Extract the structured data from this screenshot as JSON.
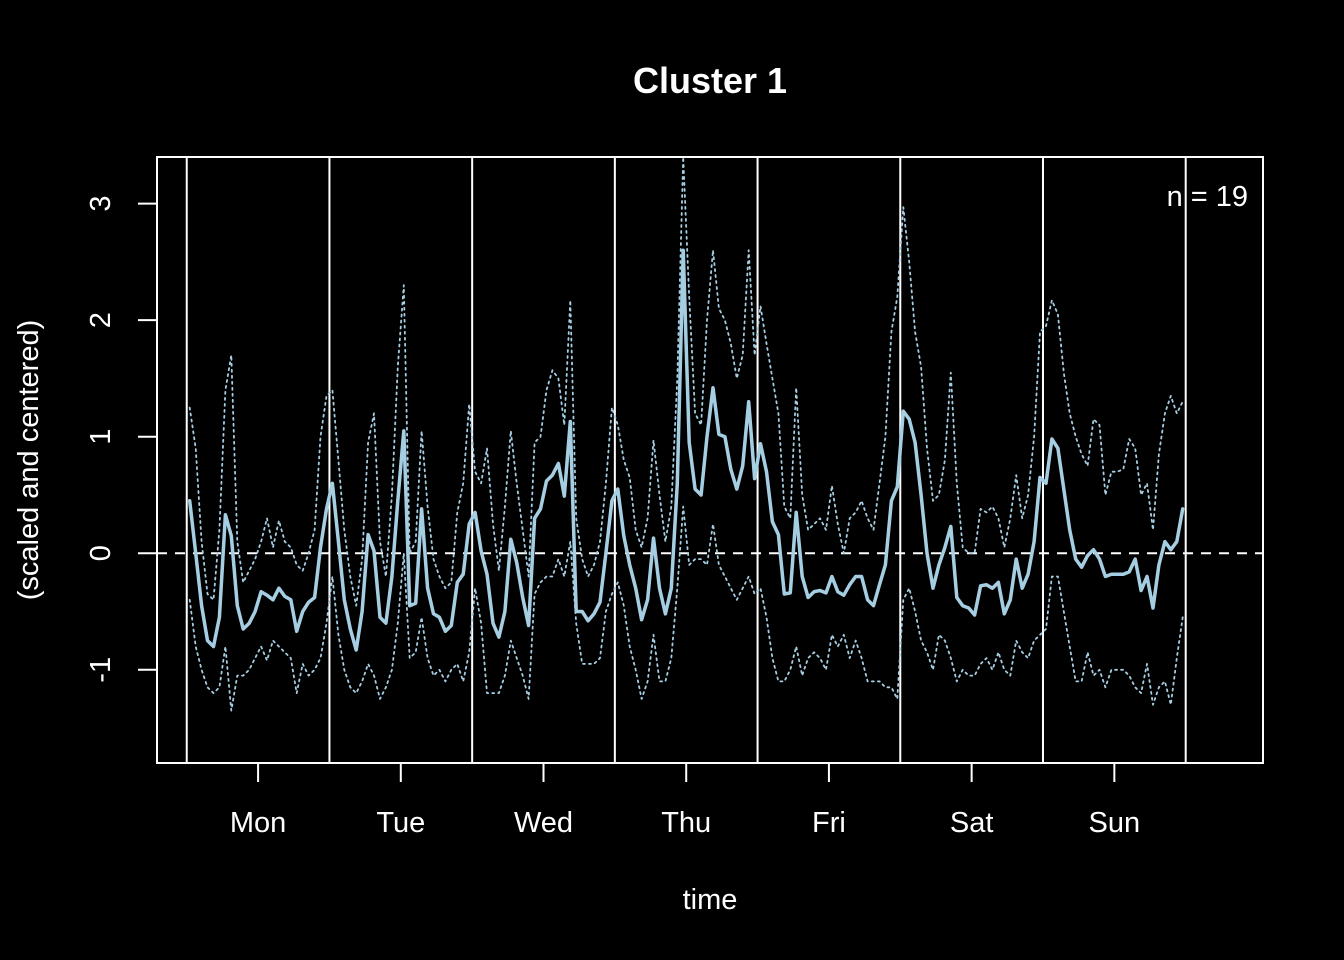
{
  "chart_data": {
    "type": "line",
    "title": "Cluster 1",
    "xlabel": "time",
    "ylabel": "(scaled and centered)",
    "annotation": "n = 19",
    "day_labels": [
      "Mon",
      "Tue",
      "Wed",
      "Thu",
      "Fri",
      "Sat",
      "Sun"
    ],
    "y_ticks": [
      -1,
      0,
      1,
      2,
      3
    ],
    "y_tick_labels": [
      "-1",
      "0",
      "1",
      "2",
      "3"
    ],
    "xlim": [
      -5.5,
      180.5
    ],
    "ylim": [
      -1.8,
      3.4
    ],
    "reference_line_y": 0,
    "grid": false,
    "colors": {
      "background": "#000000",
      "foreground": "#ffffff",
      "series": "#a6cee3"
    },
    "series": [
      {
        "name": "mean",
        "style": "solid",
        "values": [
          0.45,
          0.0,
          -0.45,
          -0.75,
          -0.8,
          -0.55,
          0.33,
          0.15,
          -0.45,
          -0.65,
          -0.6,
          -0.5,
          -0.33,
          -0.36,
          -0.4,
          -0.3,
          -0.37,
          -0.4,
          -0.67,
          -0.5,
          -0.42,
          -0.38,
          0.05,
          0.38,
          0.6,
          0.1,
          -0.4,
          -0.65,
          -0.83,
          -0.5,
          0.16,
          0.02,
          -0.55,
          -0.6,
          -0.2,
          0.45,
          1.05,
          -0.45,
          -0.43,
          0.38,
          -0.3,
          -0.52,
          -0.55,
          -0.67,
          -0.62,
          -0.25,
          -0.18,
          0.25,
          0.35,
          0.02,
          -0.18,
          -0.6,
          -0.72,
          -0.5,
          0.12,
          -0.08,
          -0.38,
          -0.62,
          0.3,
          0.38,
          0.62,
          0.67,
          0.77,
          0.49,
          1.13,
          -0.5,
          -0.5,
          -0.58,
          -0.52,
          -0.42,
          0.0,
          0.45,
          0.55,
          0.15,
          -0.1,
          -0.3,
          -0.57,
          -0.4,
          0.13,
          -0.3,
          -0.52,
          -0.3,
          0.6,
          2.6,
          0.95,
          0.55,
          0.5,
          1.0,
          1.42,
          1.02,
          1.0,
          0.72,
          0.55,
          0.75,
          1.3,
          0.64,
          0.94,
          0.7,
          0.27,
          0.16,
          -0.35,
          -0.34,
          0.35,
          -0.2,
          -0.38,
          -0.33,
          -0.32,
          -0.34,
          -0.2,
          -0.33,
          -0.36,
          -0.27,
          -0.2,
          -0.2,
          -0.4,
          -0.45,
          -0.27,
          -0.1,
          0.45,
          0.57,
          1.22,
          1.15,
          0.95,
          0.5,
          0.0,
          -0.3,
          -0.1,
          0.05,
          0.23,
          -0.38,
          -0.45,
          -0.47,
          -0.53,
          -0.28,
          -0.27,
          -0.3,
          -0.25,
          -0.52,
          -0.4,
          -0.05,
          -0.3,
          -0.18,
          0.1,
          0.65,
          0.6,
          0.98,
          0.9,
          0.55,
          0.2,
          -0.05,
          -0.12,
          -0.02,
          0.03,
          -0.05,
          -0.2,
          -0.18,
          -0.18,
          -0.18,
          -0.16,
          -0.05,
          -0.32,
          -0.2,
          -0.47,
          -0.1,
          0.1,
          0.03,
          0.1,
          0.38
        ]
      },
      {
        "name": "upper",
        "style": "dotted",
        "values": [
          1.25,
          0.9,
          0.1,
          -0.35,
          -0.4,
          0.2,
          1.4,
          1.7,
          0.1,
          -0.25,
          -0.15,
          -0.05,
          0.1,
          0.3,
          0.05,
          0.28,
          0.1,
          0.05,
          -0.1,
          -0.15,
          0.0,
          0.2,
          1.0,
          1.35,
          1.4,
          0.8,
          0.2,
          -0.2,
          -0.45,
          -0.05,
          0.95,
          1.2,
          0.1,
          -0.2,
          0.5,
          1.6,
          2.3,
          0.0,
          0.1,
          1.05,
          0.4,
          -0.05,
          -0.2,
          -0.3,
          -0.25,
          0.35,
          0.6,
          1.28,
          0.7,
          0.6,
          0.9,
          0.25,
          -0.15,
          0.4,
          1.05,
          0.6,
          0.2,
          -0.2,
          0.95,
          1.0,
          1.4,
          1.57,
          1.5,
          1.1,
          2.17,
          0.3,
          -0.05,
          -0.2,
          -0.1,
          0.1,
          0.6,
          1.25,
          1.1,
          0.8,
          0.65,
          0.2,
          0.05,
          0.3,
          0.97,
          0.5,
          0.1,
          0.4,
          1.5,
          3.4,
          2.2,
          1.2,
          1.1,
          2.0,
          2.6,
          2.1,
          2.0,
          1.8,
          1.5,
          1.7,
          2.6,
          1.7,
          2.12,
          1.8,
          1.5,
          1.2,
          0.4,
          0.3,
          1.42,
          0.5,
          0.2,
          0.25,
          0.3,
          0.2,
          0.58,
          0.25,
          0.0,
          0.3,
          0.35,
          0.45,
          0.3,
          0.2,
          0.6,
          1.0,
          1.9,
          2.2,
          2.97,
          2.5,
          1.9,
          1.6,
          0.9,
          0.45,
          0.5,
          0.8,
          1.55,
          0.6,
          0.05,
          0.0,
          0.0,
          0.38,
          0.35,
          0.4,
          0.3,
          0.05,
          0.3,
          0.67,
          0.3,
          0.5,
          1.0,
          1.9,
          1.95,
          2.17,
          2.05,
          1.55,
          1.2,
          1.0,
          0.85,
          0.75,
          1.15,
          1.1,
          0.5,
          0.7,
          0.7,
          0.72,
          0.98,
          0.9,
          0.5,
          0.6,
          0.2,
          0.85,
          1.2,
          1.35,
          1.2,
          1.3
        ]
      },
      {
        "name": "lower",
        "style": "dotted",
        "values": [
          -0.4,
          -0.8,
          -1.0,
          -1.15,
          -1.2,
          -1.15,
          -0.8,
          -1.35,
          -1.05,
          -1.05,
          -1.0,
          -0.9,
          -0.8,
          -0.92,
          -0.75,
          -0.8,
          -0.85,
          -0.9,
          -1.2,
          -0.95,
          -1.05,
          -1.0,
          -0.9,
          -0.6,
          -0.2,
          -0.7,
          -1.0,
          -1.15,
          -1.2,
          -1.1,
          -0.95,
          -1.05,
          -1.25,
          -1.15,
          -1.0,
          -0.6,
          0.0,
          -0.9,
          -0.85,
          -0.55,
          -0.9,
          -1.05,
          -1.0,
          -1.1,
          -1.0,
          -0.95,
          -1.1,
          -0.85,
          -0.3,
          -0.6,
          -1.2,
          -1.2,
          -1.2,
          -1.05,
          -0.75,
          -0.9,
          -1.05,
          -1.25,
          -0.35,
          -0.25,
          -0.2,
          -0.2,
          -0.05,
          -0.2,
          0.1,
          -0.6,
          -0.95,
          -0.95,
          -0.95,
          -0.9,
          -0.5,
          -0.35,
          -0.25,
          -0.45,
          -0.8,
          -1.0,
          -1.25,
          -1.1,
          -0.7,
          -1.1,
          -1.1,
          -0.9,
          -0.3,
          0.4,
          -0.1,
          -0.05,
          -0.05,
          -0.1,
          0.25,
          -0.1,
          -0.2,
          -0.3,
          -0.4,
          -0.3,
          -0.2,
          -0.35,
          -0.3,
          -0.55,
          -0.9,
          -1.1,
          -1.1,
          -1.0,
          -0.8,
          -1.05,
          -0.9,
          -0.85,
          -0.9,
          -1.0,
          -0.7,
          -0.8,
          -0.7,
          -0.9,
          -0.75,
          -0.9,
          -1.1,
          -1.1,
          -1.1,
          -1.15,
          -1.15,
          -1.25,
          -0.4,
          -0.3,
          -0.5,
          -0.75,
          -0.85,
          -1.0,
          -0.7,
          -0.75,
          -0.9,
          -1.1,
          -1.0,
          -1.05,
          -1.05,
          -0.95,
          -0.9,
          -1.0,
          -0.85,
          -1.0,
          -1.05,
          -0.75,
          -0.85,
          -0.9,
          -0.75,
          -0.7,
          -0.65,
          -0.2,
          -0.2,
          -0.5,
          -0.8,
          -1.1,
          -1.1,
          -0.85,
          -1.05,
          -1.0,
          -1.15,
          -1.0,
          -1.0,
          -1.0,
          -1.05,
          -1.15,
          -1.2,
          -0.95,
          -1.3,
          -1.15,
          -1.1,
          -1.3,
          -0.9,
          -0.55
        ]
      }
    ]
  }
}
